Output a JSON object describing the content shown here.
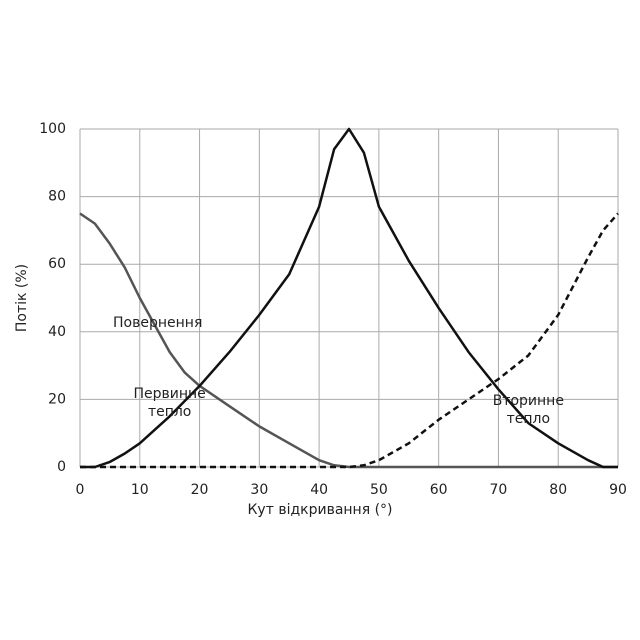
{
  "chart_data": {
    "type": "line",
    "x_label": "Кут відкривання (°)",
    "y_label": "Потік (%)",
    "x": [
      0,
      2.5,
      5,
      7.5,
      10,
      12.5,
      15,
      17.5,
      20,
      25,
      30,
      35,
      40,
      42.5,
      45,
      47.5,
      50,
      55,
      60,
      65,
      70,
      75,
      80,
      85,
      87.5,
      90
    ],
    "series": [
      {
        "name": "Повернення",
        "color": "#555555",
        "dash": false,
        "values": [
          75,
          72,
          66,
          59,
          50,
          42,
          34,
          28,
          24,
          18,
          12,
          7,
          2,
          0.5,
          0,
          0,
          0,
          0,
          0,
          0,
          0,
          0,
          0,
          0,
          0,
          0
        ]
      },
      {
        "name": "Первинне тепло",
        "color": "#111111",
        "dash": false,
        "values": [
          0,
          0,
          1.5,
          4,
          7,
          11,
          15,
          19.5,
          24,
          34,
          45,
          57,
          77,
          94,
          100,
          93,
          77,
          61,
          47,
          34,
          23,
          13,
          7,
          2,
          0,
          0
        ]
      },
      {
        "name": "Вторинне тепло",
        "color": "#111111",
        "dash": true,
        "values": [
          0,
          0,
          0,
          0,
          0,
          0,
          0,
          0,
          0,
          0,
          0,
          0,
          0,
          0,
          0,
          0.5,
          2,
          7,
          14,
          20,
          26,
          33,
          45,
          62,
          70,
          75
        ]
      }
    ],
    "xlim": [
      0,
      90
    ],
    "ylim": [
      0,
      100
    ],
    "xticks": [
      0,
      10,
      20,
      30,
      40,
      50,
      60,
      70,
      80,
      90
    ],
    "yticks": [
      0,
      20,
      40,
      60,
      80,
      100
    ],
    "grid": true
  }
}
